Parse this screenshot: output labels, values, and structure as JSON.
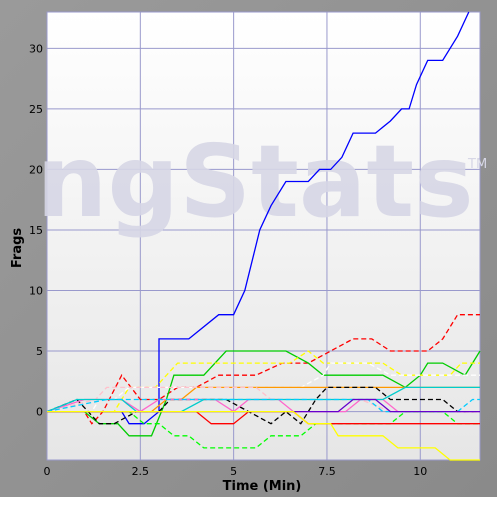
{
  "chart_data": {
    "type": "line",
    "title": "",
    "xlabel": "Time (Min)",
    "ylabel": "Frags",
    "xlim": [
      0,
      11.6
    ],
    "ylim": [
      -4,
      33
    ],
    "x_ticks": [
      0,
      2.5,
      5,
      7.5,
      10
    ],
    "x_tick_labels": [
      "0",
      "2.5",
      "5",
      "7.5",
      "10"
    ],
    "y_ticks": [
      0,
      5,
      10,
      15,
      20,
      25,
      30
    ],
    "y_tick_labels": [
      "0",
      "5",
      "10",
      "15",
      "20",
      "25",
      "30"
    ],
    "grid": true,
    "watermark": "ngStats",
    "watermark_tm": "TM",
    "series": [
      {
        "color": "#0000ff",
        "dash": false,
        "points": [
          [
            0,
            0
          ],
          [
            2.0,
            0
          ],
          [
            2.2,
            -1
          ],
          [
            2.6,
            -1
          ],
          [
            3.0,
            0
          ],
          [
            3.0,
            6
          ],
          [
            3.8,
            6
          ],
          [
            4.6,
            8
          ],
          [
            5.0,
            8
          ],
          [
            5.3,
            10
          ],
          [
            5.7,
            15
          ],
          [
            6.0,
            17
          ],
          [
            6.4,
            19
          ],
          [
            7.0,
            19
          ],
          [
            7.3,
            20
          ],
          [
            7.6,
            20
          ],
          [
            7.9,
            21
          ],
          [
            8.2,
            23
          ],
          [
            8.8,
            23
          ],
          [
            9.2,
            24
          ],
          [
            9.5,
            25
          ],
          [
            9.7,
            25
          ],
          [
            9.9,
            27
          ],
          [
            10.2,
            29
          ],
          [
            10.6,
            29
          ],
          [
            11.0,
            31
          ],
          [
            11.3,
            33
          ]
        ]
      },
      {
        "color": "#ff0000",
        "dash": true,
        "points": [
          [
            0,
            0
          ],
          [
            1.0,
            0
          ],
          [
            1.2,
            -1
          ],
          [
            1.5,
            0
          ],
          [
            2.0,
            3
          ],
          [
            2.5,
            1
          ],
          [
            3.0,
            1
          ],
          [
            3.5,
            2
          ],
          [
            4.0,
            2
          ],
          [
            4.6,
            3
          ],
          [
            5.6,
            3
          ],
          [
            6.3,
            4
          ],
          [
            7.0,
            4
          ],
          [
            7.6,
            5
          ],
          [
            8.2,
            6
          ],
          [
            8.7,
            6
          ],
          [
            9.2,
            5
          ],
          [
            10.2,
            5
          ],
          [
            10.6,
            6
          ],
          [
            11.0,
            8
          ],
          [
            11.6,
            8
          ]
        ]
      },
      {
        "color": "#00cc00",
        "dash": false,
        "points": [
          [
            0,
            0
          ],
          [
            1.0,
            0
          ],
          [
            1.4,
            -1
          ],
          [
            1.9,
            -1
          ],
          [
            2.2,
            -2
          ],
          [
            2.8,
            -2
          ],
          [
            3.2,
            1
          ],
          [
            3.4,
            3
          ],
          [
            4.2,
            3
          ],
          [
            4.8,
            5
          ],
          [
            6.4,
            5
          ],
          [
            7.0,
            4
          ],
          [
            7.4,
            3
          ],
          [
            9.0,
            3
          ],
          [
            9.6,
            2
          ],
          [
            10.0,
            3
          ],
          [
            10.2,
            4
          ],
          [
            10.6,
            4
          ],
          [
            11.2,
            3
          ],
          [
            11.6,
            5
          ]
        ]
      },
      {
        "color": "#ffff00",
        "dash": true,
        "points": [
          [
            0,
            0
          ],
          [
            1.8,
            0
          ],
          [
            2.2,
            2
          ],
          [
            2.9,
            2
          ],
          [
            3.5,
            4
          ],
          [
            6.5,
            4
          ],
          [
            7.0,
            5
          ],
          [
            7.4,
            4
          ],
          [
            9.0,
            4
          ],
          [
            9.5,
            3
          ],
          [
            10.8,
            3
          ],
          [
            11.1,
            4
          ],
          [
            11.6,
            4
          ]
        ]
      },
      {
        "color": "#ffffff",
        "dash": true,
        "points": [
          [
            0,
            0
          ],
          [
            1.2,
            0
          ],
          [
            1.4,
            1
          ],
          [
            1.8,
            1
          ],
          [
            2.2,
            2
          ],
          [
            3.5,
            2
          ],
          [
            6.8,
            2
          ],
          [
            7.4,
            3
          ],
          [
            7.6,
            4
          ],
          [
            8.6,
            4
          ],
          [
            9.2,
            3
          ],
          [
            11.6,
            3
          ]
        ]
      },
      {
        "color": "#ff9900",
        "dash": false,
        "points": [
          [
            0,
            0
          ],
          [
            2.8,
            0
          ],
          [
            3.2,
            1
          ],
          [
            3.6,
            1
          ],
          [
            4.0,
            2
          ],
          [
            6.4,
            2
          ],
          [
            9.2,
            2
          ],
          [
            11.6,
            2
          ]
        ]
      },
      {
        "color": "#000000",
        "dash": true,
        "points": [
          [
            0,
            0
          ],
          [
            0.8,
            1
          ],
          [
            1.4,
            -1
          ],
          [
            1.8,
            -1
          ],
          [
            2.4,
            0
          ],
          [
            3.0,
            0
          ],
          [
            3.3,
            1
          ],
          [
            4.8,
            1
          ],
          [
            6.0,
            -1
          ],
          [
            6.4,
            0
          ],
          [
            6.8,
            -1
          ],
          [
            7.2,
            1
          ],
          [
            7.5,
            2
          ],
          [
            8.8,
            2
          ],
          [
            9.2,
            1
          ],
          [
            10.6,
            1
          ],
          [
            11.0,
            0
          ],
          [
            11.6,
            0
          ]
        ]
      },
      {
        "color": "#ff66cc",
        "dash": false,
        "points": [
          [
            0,
            0
          ],
          [
            1.0,
            1
          ],
          [
            2.0,
            1
          ],
          [
            2.5,
            0
          ],
          [
            3.0,
            1
          ],
          [
            4.5,
            1
          ],
          [
            5.0,
            0
          ],
          [
            5.4,
            1
          ],
          [
            6.2,
            1
          ],
          [
            6.6,
            0
          ],
          [
            8.0,
            0
          ],
          [
            8.4,
            1
          ],
          [
            9.0,
            1
          ],
          [
            9.4,
            0
          ],
          [
            11.6,
            0
          ]
        ]
      },
      {
        "color": "#ffc0cb",
        "dash": true,
        "points": [
          [
            0,
            0
          ],
          [
            1.3,
            1
          ],
          [
            1.6,
            2
          ],
          [
            3.2,
            2
          ],
          [
            5.6,
            2
          ],
          [
            6.0,
            1
          ],
          [
            8.4,
            1
          ],
          [
            9.2,
            0
          ],
          [
            11.6,
            0
          ]
        ]
      },
      {
        "color": "#00cccc",
        "dash": false,
        "points": [
          [
            0,
            0
          ],
          [
            0.8,
            1
          ],
          [
            2.0,
            1
          ],
          [
            2.4,
            0
          ],
          [
            3.6,
            0
          ],
          [
            4.2,
            1
          ],
          [
            8.0,
            1
          ],
          [
            9.0,
            1
          ],
          [
            9.6,
            2
          ],
          [
            11.6,
            2
          ]
        ]
      },
      {
        "color": "#00ccff",
        "dash": true,
        "points": [
          [
            0,
            0
          ],
          [
            1.6,
            1
          ],
          [
            8.6,
            1
          ],
          [
            9.0,
            0
          ],
          [
            11.0,
            0
          ],
          [
            11.4,
            1
          ],
          [
            11.6,
            1
          ]
        ]
      },
      {
        "color": "#00ff00",
        "dash": true,
        "points": [
          [
            0,
            0
          ],
          [
            2.2,
            0
          ],
          [
            2.6,
            -1
          ],
          [
            3.0,
            -1
          ],
          [
            3.4,
            -2
          ],
          [
            3.8,
            -2
          ],
          [
            4.2,
            -3
          ],
          [
            5.6,
            -3
          ],
          [
            6.0,
            -2
          ],
          [
            6.8,
            -2
          ],
          [
            7.2,
            -1
          ],
          [
            9.2,
            -1
          ],
          [
            9.6,
            0
          ],
          [
            10.6,
            0
          ],
          [
            11.0,
            -1
          ],
          [
            11.6,
            -1
          ]
        ]
      },
      {
        "color": "#ff0000",
        "dash": false,
        "points": [
          [
            0,
            0
          ],
          [
            4.0,
            0
          ],
          [
            4.4,
            -1
          ],
          [
            5.0,
            -1
          ],
          [
            5.4,
            0
          ],
          [
            6.6,
            0
          ],
          [
            7.0,
            -1
          ],
          [
            11.6,
            -1
          ]
        ]
      },
      {
        "color": "#6600cc",
        "dash": false,
        "points": [
          [
            0,
            0
          ],
          [
            7.8,
            0
          ],
          [
            8.2,
            1
          ],
          [
            8.8,
            1
          ],
          [
            9.2,
            0
          ],
          [
            11.6,
            0
          ]
        ]
      },
      {
        "color": "#ffff00",
        "dash": false,
        "points": [
          [
            0,
            0
          ],
          [
            6.6,
            0
          ],
          [
            7.0,
            -1
          ],
          [
            7.6,
            -1
          ],
          [
            7.8,
            -2
          ],
          [
            9.0,
            -2
          ],
          [
            9.4,
            -3
          ],
          [
            10.4,
            -3
          ],
          [
            10.8,
            -4
          ],
          [
            11.6,
            -4
          ]
        ]
      }
    ]
  }
}
